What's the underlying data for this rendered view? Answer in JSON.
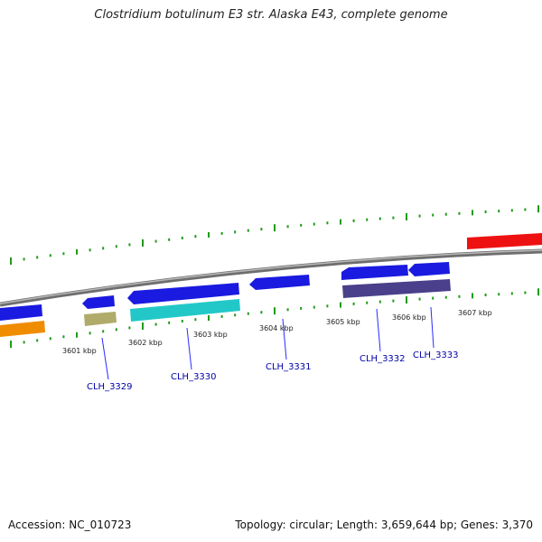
{
  "title": "Clostridium botulinum E3 str. Alaska E43, complete genome",
  "footer": {
    "accession": "Accession: NC_010723",
    "summary": "Topology: circular; Length: 3,659,644 bp; Genes: 3,370"
  },
  "colors": {
    "backbone": "#8a8a8a",
    "tick": "#22991a",
    "cds_blue": "#1a1ae0",
    "orange": "#f08c00",
    "khaki": "#b0ab6a",
    "cyan": "#22c8c8",
    "slate": "#4a3f8a",
    "red": "#ee1111",
    "label_blue": "#0000aa"
  },
  "position_labels": [
    "3601 kbp",
    "3602 kbp",
    "3603 kbp",
    "3604 kbp",
    "3605 kbp",
    "3606 kbp",
    "3607 kbp"
  ],
  "gene_labels": [
    "CLH_3329",
    "CLH_3330",
    "CLH_3331",
    "CLH_3332",
    "CLH_3333"
  ]
}
